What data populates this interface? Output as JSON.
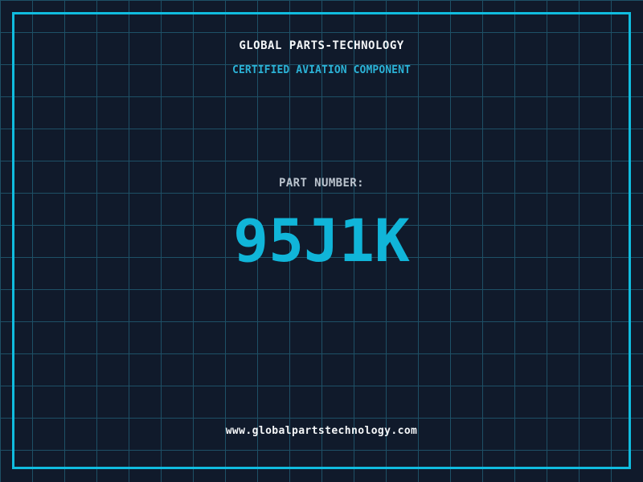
{
  "company": {
    "name": "GLOBAL PARTS-TECHNOLOGY",
    "tagline": "CERTIFIED AVIATION COMPONENT",
    "website": "www.globalpartstechnology.com"
  },
  "part": {
    "label": "PART NUMBER:",
    "number": "95J1K"
  },
  "colors": {
    "background": "#101a2b",
    "grid_line": "#1e5066",
    "frame_border": "#10bcdf",
    "accent_cyan": "#2bb2d6",
    "part_number_cyan": "#10b5d9",
    "title_white": "#f4f6f8",
    "label_gray": "#bac3cd"
  }
}
